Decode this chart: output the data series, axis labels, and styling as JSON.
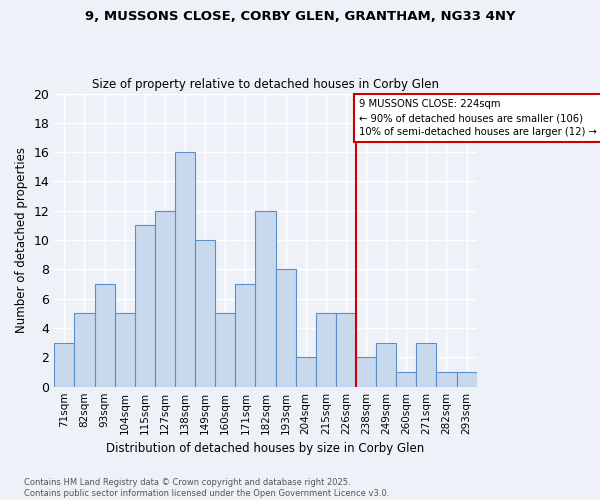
{
  "title_line1": "9, MUSSONS CLOSE, CORBY GLEN, GRANTHAM, NG33 4NY",
  "title_line2": "Size of property relative to detached houses in Corby Glen",
  "xlabel": "Distribution of detached houses by size in Corby Glen",
  "ylabel": "Number of detached properties",
  "bar_labels": [
    "71sqm",
    "82sqm",
    "93sqm",
    "104sqm",
    "115sqm",
    "127sqm",
    "138sqm",
    "149sqm",
    "160sqm",
    "171sqm",
    "182sqm",
    "193sqm",
    "204sqm",
    "215sqm",
    "226sqm",
    "238sqm",
    "249sqm",
    "260sqm",
    "271sqm",
    "282sqm",
    "293sqm"
  ],
  "bar_values": [
    3,
    5,
    7,
    5,
    11,
    12,
    16,
    10,
    5,
    7,
    12,
    8,
    2,
    5,
    5,
    2,
    3,
    1,
    3,
    1,
    1
  ],
  "bar_color": "#c9d9ed",
  "bar_edge_color": "#5b8fc9",
  "reference_line_x": 14.5,
  "reference_line_label": "9 MUSSONS CLOSE: 224sqm",
  "annotation_line1": "← 90% of detached houses are smaller (106)",
  "annotation_line2": "10% of semi-detached houses are larger (12) →",
  "annotation_box_color": "#ffffff",
  "annotation_box_edge": "#cc0000",
  "vline_color": "#cc0000",
  "ylim": [
    0,
    20
  ],
  "yticks": [
    0,
    2,
    4,
    6,
    8,
    10,
    12,
    14,
    16,
    18,
    20
  ],
  "footnote_line1": "Contains HM Land Registry data © Crown copyright and database right 2025.",
  "footnote_line2": "Contains public sector information licensed under the Open Government Licence v3.0.",
  "bg_color": "#eef2f8"
}
